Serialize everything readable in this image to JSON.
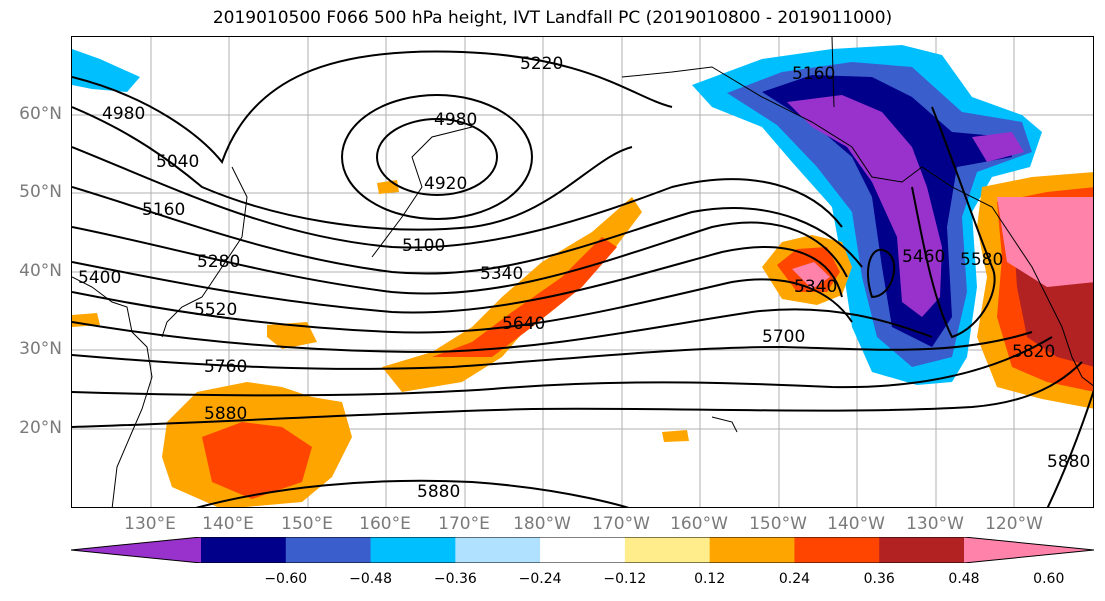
{
  "title": "2019010500 F066 500 hPa height, IVT Landfall PC (2019010800 - 2019011000)",
  "lat_labels": [
    "60°N",
    "50°N",
    "40°N",
    "30°N",
    "20°N"
  ],
  "lon_labels": [
    "130°E",
    "140°E",
    "150°E",
    "160°E",
    "170°E",
    "180°W",
    "170°W",
    "160°W",
    "150°W",
    "140°W",
    "130°W",
    "120°W"
  ],
  "contour_labels": [
    "5220",
    "5160",
    "4980",
    "4980",
    "4920",
    "5040",
    "5160",
    "5100",
    "5280",
    "5400",
    "5520",
    "5340",
    "5640",
    "5760",
    "5880",
    "5880",
    "5700",
    "5340",
    "5460",
    "5580",
    "5820",
    "5880"
  ],
  "colorbar": {
    "ticks": [
      "−0.60",
      "−0.48",
      "−0.36",
      "−0.24",
      "−0.12",
      "0.12",
      "0.24",
      "0.36",
      "0.48",
      "0.60"
    ],
    "colors": [
      "#9932cc",
      "#00008b",
      "#3a5fcd",
      "#00bfff",
      "#b0e2ff",
      "#ffffff",
      "#ffec8b",
      "#ffa500",
      "#ff4500",
      "#b22222",
      "#ff82ab"
    ]
  }
}
